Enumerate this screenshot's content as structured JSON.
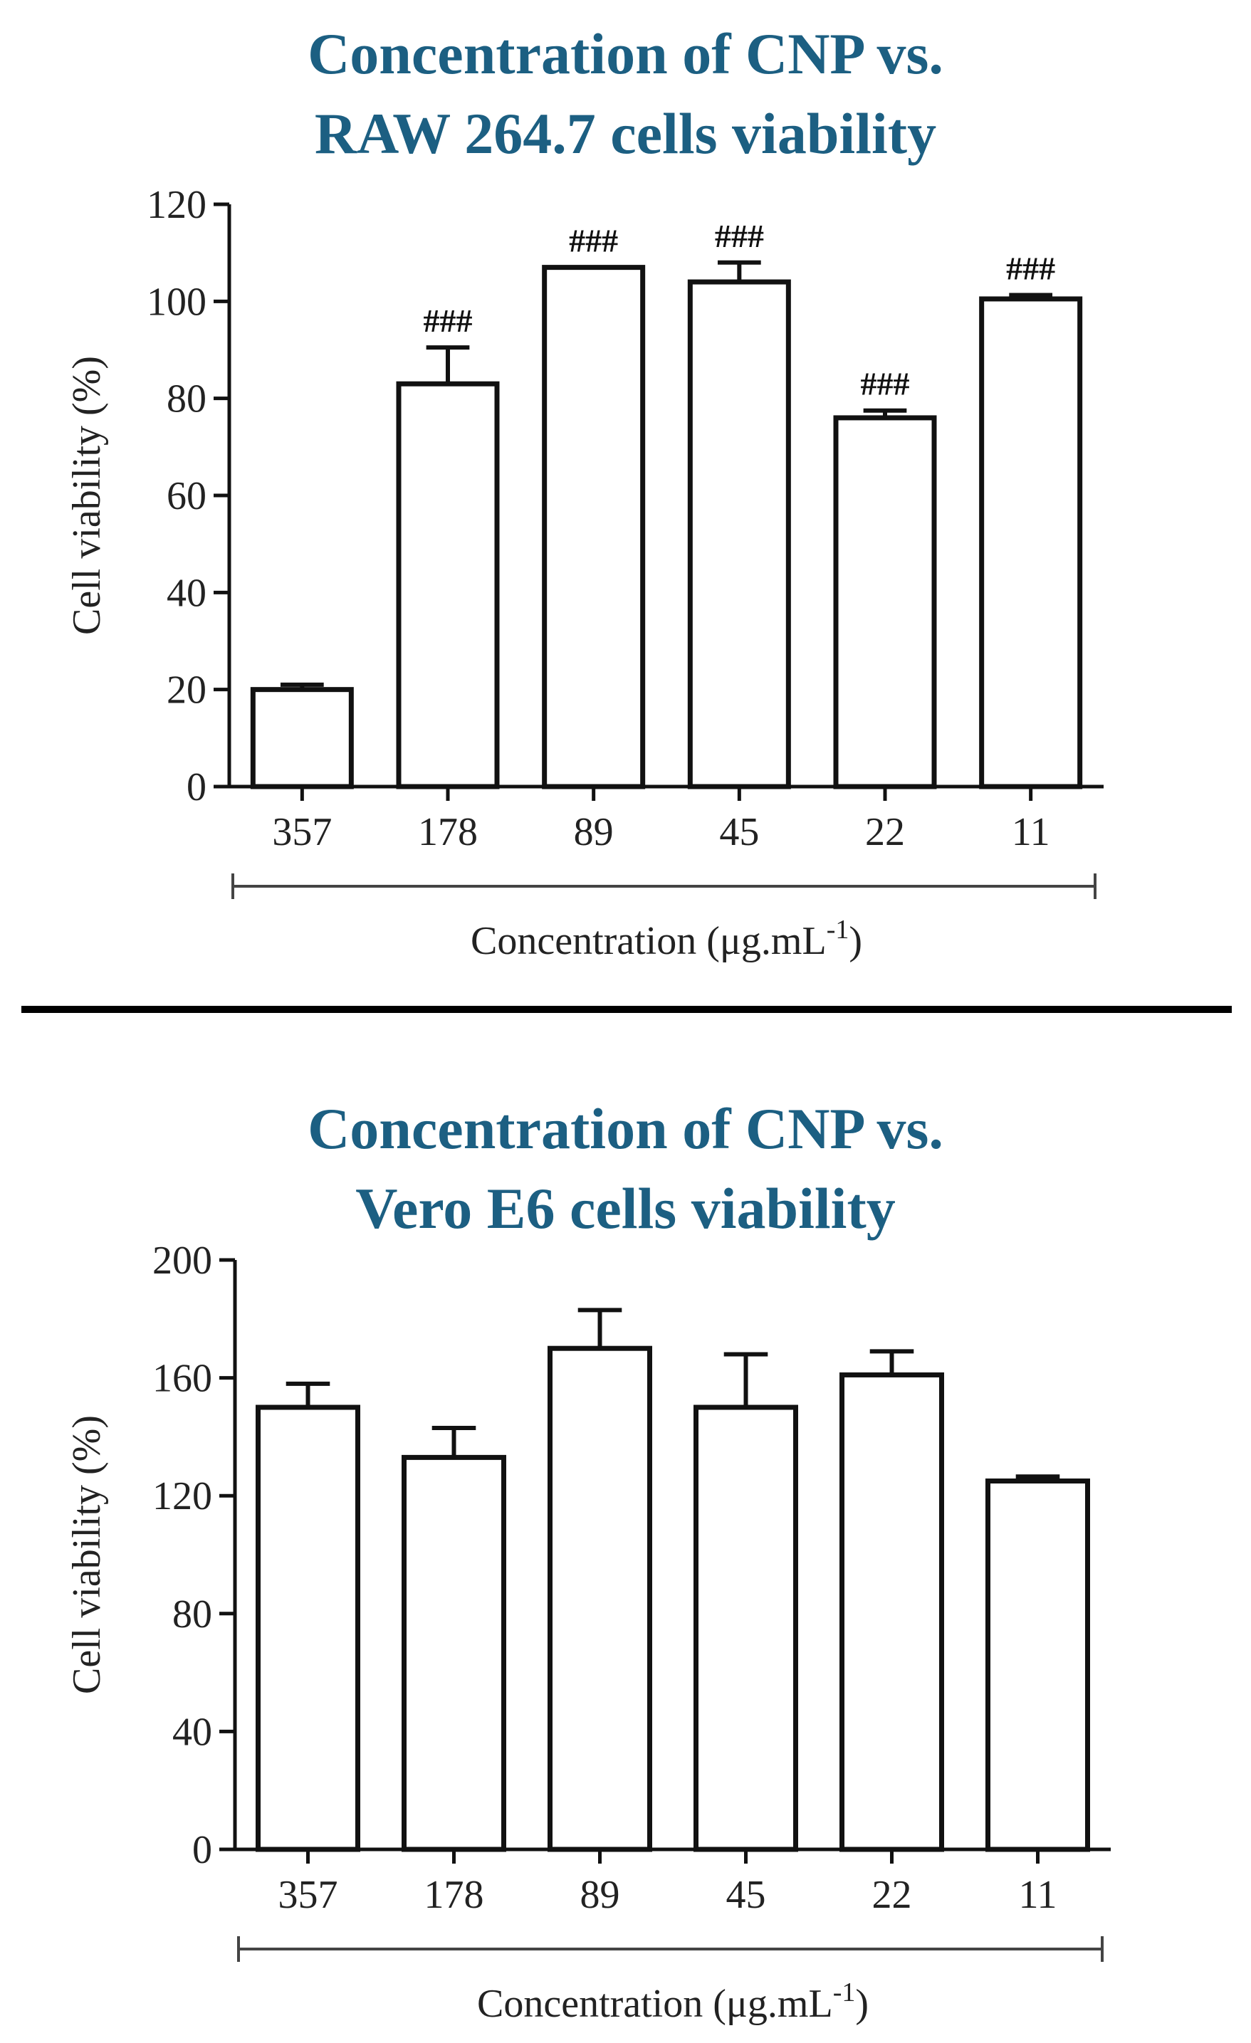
{
  "chart_data": [
    {
      "type": "bar",
      "title_lines": [
        "Concentration of CNP vs.",
        "RAW 264.7 cells viability"
      ],
      "categories": [
        "357",
        "178",
        "89",
        "45",
        "22",
        "11"
      ],
      "values": [
        20,
        83,
        107,
        104,
        76,
        100.5
      ],
      "errors": [
        1,
        7.5,
        0,
        4,
        1.5,
        0.8
      ],
      "annotations": [
        "",
        "###",
        "###",
        "###",
        "###",
        "###"
      ],
      "ylabel": "Cell viability (%)",
      "xlabel": "Concentration",
      "xlabel_unit_prefix": "(μg.mL",
      "xlabel_unit_sup": "-1",
      "xlabel_unit_suffix": ")",
      "ylim": [
        0,
        120
      ],
      "yticks": [
        0,
        20,
        40,
        60,
        80,
        100,
        120
      ]
    },
    {
      "type": "bar",
      "title_lines": [
        "Concentration of CNP vs.",
        "Vero E6 cells viability"
      ],
      "categories": [
        "357",
        "178",
        "89",
        "45",
        "22",
        "11"
      ],
      "values": [
        150,
        133,
        170,
        150,
        161,
        125
      ],
      "errors": [
        8,
        10,
        13,
        18,
        8,
        1.5
      ],
      "annotations": [
        "",
        "",
        "",
        "",
        "",
        ""
      ],
      "ylabel": "Cell viability (%)",
      "xlabel": "Concentration",
      "xlabel_unit_prefix": "(μg.mL",
      "xlabel_unit_sup": "-1",
      "xlabel_unit_suffix": ")",
      "ylim": [
        0,
        200
      ],
      "yticks": [
        0,
        40,
        80,
        120,
        160,
        200
      ]
    }
  ]
}
